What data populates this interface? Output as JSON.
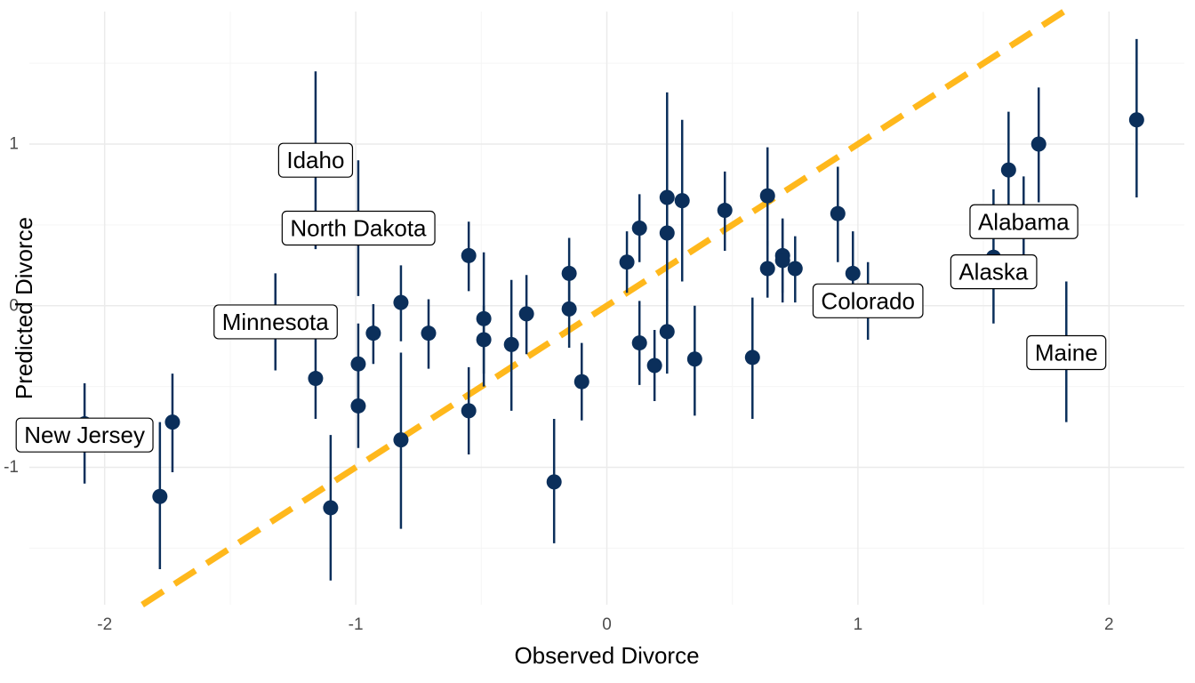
{
  "chart_data": {
    "type": "scatter",
    "title": "",
    "xlabel": "Observed Divorce",
    "ylabel": "Predicted Divorce",
    "xlim": [
      -2.3,
      2.3
    ],
    "ylim": [
      -1.85,
      1.82
    ],
    "x_ticks": [
      {
        "value": -2,
        "label": "-2"
      },
      {
        "value": -1,
        "label": "-1"
      },
      {
        "value": 0,
        "label": "0"
      },
      {
        "value": 1,
        "label": "1"
      },
      {
        "value": 2,
        "label": "2"
      }
    ],
    "y_ticks": [
      {
        "value": -1,
        "label": "-1"
      },
      {
        "value": 0,
        "label": "0"
      },
      {
        "value": 1,
        "label": "1"
      }
    ],
    "grid": true,
    "reference_line": {
      "slope": 1,
      "intercept": 0,
      "style": "dashed",
      "color": "#FFB81C"
    },
    "point_color": "#0B2F5B",
    "points": [
      {
        "x": -2.08,
        "y": -0.73,
        "lo": -1.1,
        "hi": -0.48
      },
      {
        "x": -1.78,
        "y": -1.18,
        "lo": -1.63,
        "hi": -0.72
      },
      {
        "x": -1.73,
        "y": -0.72,
        "lo": -1.03,
        "hi": -0.42
      },
      {
        "x": -1.32,
        "y": -0.12,
        "lo": -0.4,
        "hi": 0.2
      },
      {
        "x": -1.16,
        "y": -0.45,
        "lo": -0.7,
        "hi": -0.2
      },
      {
        "x": -1.16,
        "y": 0.9,
        "lo": 0.35,
        "hi": 1.45
      },
      {
        "x": -1.1,
        "y": -1.25,
        "lo": -1.7,
        "hi": -0.8
      },
      {
        "x": -0.99,
        "y": -0.36,
        "lo": -0.62,
        "hi": -0.11
      },
      {
        "x": -0.99,
        "y": -0.62,
        "lo": -0.88,
        "hi": -0.36
      },
      {
        "x": -0.99,
        "y": 0.48,
        "lo": 0.06,
        "hi": 0.9
      },
      {
        "x": -0.93,
        "y": -0.17,
        "lo": -0.36,
        "hi": 0.01
      },
      {
        "x": -0.82,
        "y": 0.02,
        "lo": -0.22,
        "hi": 0.25
      },
      {
        "x": -0.82,
        "y": -0.83,
        "lo": -1.38,
        "hi": -0.29
      },
      {
        "x": -0.71,
        "y": -0.17,
        "lo": -0.39,
        "hi": 0.04
      },
      {
        "x": -0.55,
        "y": 0.31,
        "lo": 0.09,
        "hi": 0.52
      },
      {
        "x": -0.55,
        "y": -0.65,
        "lo": -0.92,
        "hi": -0.38
      },
      {
        "x": -0.49,
        "y": -0.08,
        "lo": -0.5,
        "hi": 0.33
      },
      {
        "x": -0.49,
        "y": -0.21,
        "lo": -0.42,
        "hi": 0.0
      },
      {
        "x": -0.38,
        "y": -0.24,
        "lo": -0.65,
        "hi": 0.16
      },
      {
        "x": -0.32,
        "y": -0.05,
        "lo": -0.3,
        "hi": 0.19
      },
      {
        "x": -0.21,
        "y": -1.09,
        "lo": -1.47,
        "hi": -0.7
      },
      {
        "x": -0.15,
        "y": 0.2,
        "lo": -0.03,
        "hi": 0.42
      },
      {
        "x": -0.15,
        "y": -0.02,
        "lo": -0.26,
        "hi": 0.22
      },
      {
        "x": -0.1,
        "y": -0.47,
        "lo": -0.71,
        "hi": -0.23
      },
      {
        "x": 0.08,
        "y": 0.27,
        "lo": 0.08,
        "hi": 0.46
      },
      {
        "x": 0.13,
        "y": 0.48,
        "lo": 0.27,
        "hi": 0.69
      },
      {
        "x": 0.13,
        "y": -0.23,
        "lo": -0.49,
        "hi": 0.03
      },
      {
        "x": 0.19,
        "y": -0.37,
        "lo": -0.59,
        "hi": -0.15
      },
      {
        "x": 0.24,
        "y": 0.67,
        "lo": 0.03,
        "hi": 1.32
      },
      {
        "x": 0.24,
        "y": 0.45,
        "lo": 0.2,
        "hi": 0.7
      },
      {
        "x": 0.24,
        "y": -0.16,
        "lo": -0.42,
        "hi": 0.1
      },
      {
        "x": 0.3,
        "y": 0.65,
        "lo": 0.15,
        "hi": 1.15
      },
      {
        "x": 0.35,
        "y": -0.33,
        "lo": -0.68,
        "hi": 0.0
      },
      {
        "x": 0.47,
        "y": 0.59,
        "lo": 0.34,
        "hi": 0.83
      },
      {
        "x": 0.58,
        "y": -0.32,
        "lo": -0.7,
        "hi": 0.05
      },
      {
        "x": 0.64,
        "y": 0.68,
        "lo": 0.37,
        "hi": 0.98
      },
      {
        "x": 0.64,
        "y": 0.23,
        "lo": 0.05,
        "hi": 0.4
      },
      {
        "x": 0.7,
        "y": 0.31,
        "lo": 0.08,
        "hi": 0.54
      },
      {
        "x": 0.7,
        "y": 0.28,
        "lo": 0.02,
        "hi": 0.53
      },
      {
        "x": 0.75,
        "y": 0.23,
        "lo": 0.02,
        "hi": 0.43
      },
      {
        "x": 0.92,
        "y": 0.57,
        "lo": 0.27,
        "hi": 0.86
      },
      {
        "x": 0.98,
        "y": 0.2,
        "lo": -0.05,
        "hi": 0.46
      },
      {
        "x": 1.04,
        "y": 0.05,
        "lo": -0.21,
        "hi": 0.27
      },
      {
        "x": 1.54,
        "y": 0.3,
        "lo": -0.11,
        "hi": 0.72
      },
      {
        "x": 1.6,
        "y": 0.84,
        "lo": 0.48,
        "hi": 1.2
      },
      {
        "x": 1.66,
        "y": 0.55,
        "lo": 0.3,
        "hi": 0.8
      },
      {
        "x": 1.72,
        "y": 1.0,
        "lo": 0.64,
        "hi": 1.35
      },
      {
        "x": 1.83,
        "y": -0.3,
        "lo": -0.72,
        "hi": 0.15
      },
      {
        "x": 2.11,
        "y": 1.15,
        "lo": 0.67,
        "hi": 1.65
      }
    ],
    "labels": [
      {
        "text": "Idaho",
        "x": -1.16,
        "y": 0.9
      },
      {
        "text": "North Dakota",
        "x": -0.99,
        "y": 0.48
      },
      {
        "text": "Minnesota",
        "x": -1.32,
        "y": -0.1
      },
      {
        "text": "New Jersey",
        "x": -2.08,
        "y": -0.8
      },
      {
        "text": "Colorado",
        "x": 1.04,
        "y": 0.03
      },
      {
        "text": "Alabama",
        "x": 1.66,
        "y": 0.52
      },
      {
        "text": "Alaska",
        "x": 1.54,
        "y": 0.21
      },
      {
        "text": "Maine",
        "x": 1.83,
        "y": -0.29
      }
    ]
  }
}
